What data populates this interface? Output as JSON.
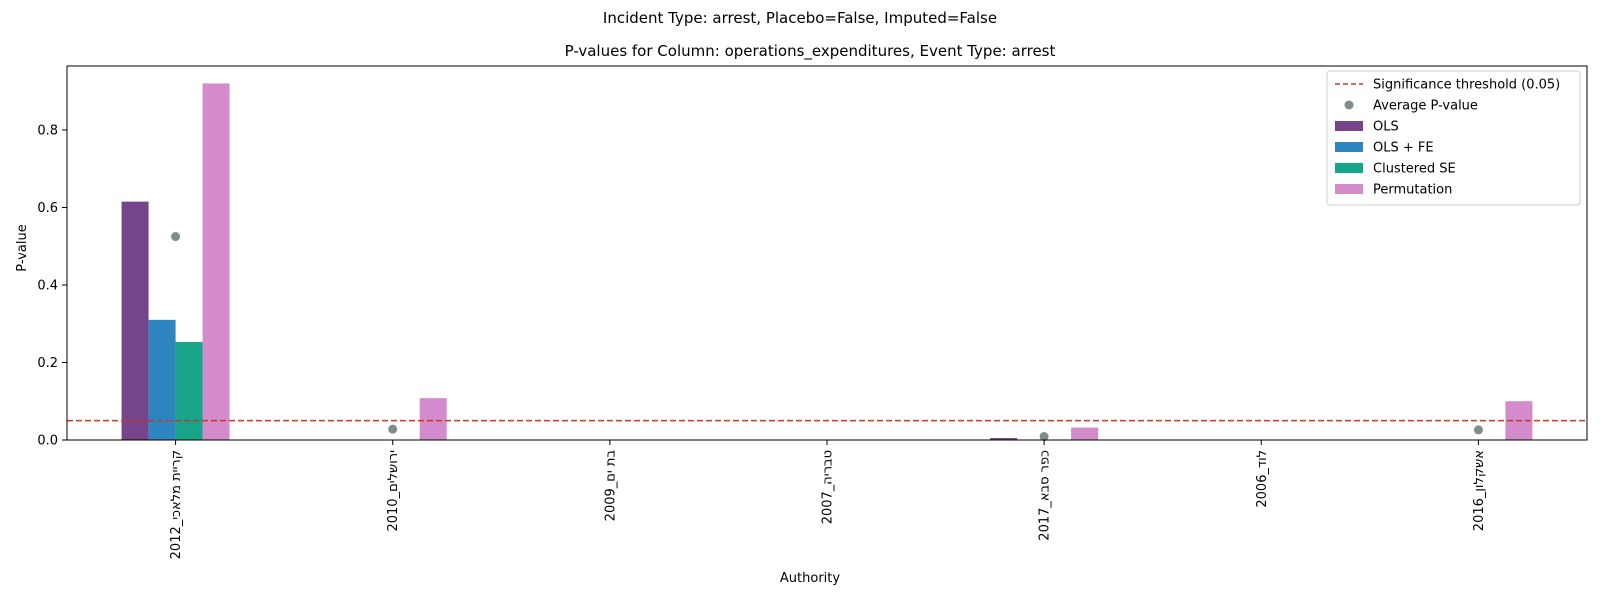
{
  "chart_data": {
    "type": "bar",
    "suptitle": "Incident Type: arrest, Placebo=False, Imputed=False",
    "title": "P-values for Column: operations_expenditures, Event Type: arrest",
    "xlabel": "Authority",
    "ylabel": "P-value",
    "ylim": [
      0,
      0.965
    ],
    "yticks": [
      0.0,
      0.2,
      0.4,
      0.6,
      0.8
    ],
    "ytick_labels": [
      "0.0",
      "0.2",
      "0.4",
      "0.6",
      "0.8"
    ],
    "categories": [
      "קריית מלאכי_2012",
      "ירושלים_2010",
      "בת ים_2009",
      "טבריה_2007",
      "כפר סבא_2017",
      "לוד_2006",
      "אשקלון_2016"
    ],
    "series": [
      {
        "name": "OLS",
        "color": "#76448a",
        "values": [
          0.615,
          0.0,
          0.0,
          0.0,
          0.005,
          0.0,
          0.0
        ]
      },
      {
        "name": "OLS + FE",
        "color": "#2e86c1",
        "values": [
          0.31,
          0.0,
          0.0,
          0.0,
          0.0,
          0.0,
          0.0
        ]
      },
      {
        "name": "Clustered SE",
        "color": "#17a589",
        "values": [
          0.253,
          0.0,
          0.0,
          0.0,
          0.0,
          0.0,
          0.0
        ]
      },
      {
        "name": "Permutation",
        "color": "#d38bcb",
        "values": [
          0.92,
          0.108,
          0.0,
          0.0,
          0.032,
          0.0,
          0.1
        ]
      }
    ],
    "average": {
      "name": "Average P-value",
      "color": "#7f8c8d",
      "values": [
        0.525,
        0.028,
        null,
        null,
        0.009,
        null,
        0.026
      ]
    },
    "threshold": {
      "name": "Significance threshold (0.05)",
      "value": 0.05,
      "color": "#c0392b"
    },
    "legend_position": "top-right",
    "grid": false
  }
}
